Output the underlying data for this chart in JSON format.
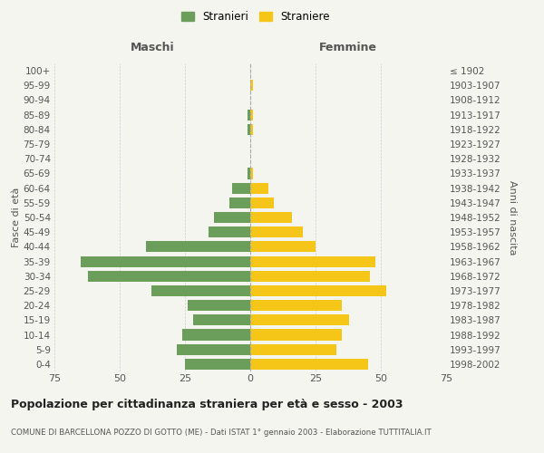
{
  "age_groups": [
    "100+",
    "95-99",
    "90-94",
    "85-89",
    "80-84",
    "75-79",
    "70-74",
    "65-69",
    "60-64",
    "55-59",
    "50-54",
    "45-49",
    "40-44",
    "35-39",
    "30-34",
    "25-29",
    "20-24",
    "15-19",
    "10-14",
    "5-9",
    "0-4"
  ],
  "birth_years": [
    "≤ 1902",
    "1903-1907",
    "1908-1912",
    "1913-1917",
    "1918-1922",
    "1923-1927",
    "1928-1932",
    "1933-1937",
    "1938-1942",
    "1943-1947",
    "1948-1952",
    "1953-1957",
    "1958-1962",
    "1963-1967",
    "1968-1972",
    "1973-1977",
    "1978-1982",
    "1983-1987",
    "1988-1992",
    "1993-1997",
    "1998-2002"
  ],
  "maschi": [
    0,
    0,
    0,
    1,
    1,
    0,
    0,
    1,
    7,
    8,
    14,
    16,
    40,
    65,
    62,
    38,
    24,
    22,
    26,
    28,
    25
  ],
  "femmine": [
    0,
    1,
    0,
    1,
    1,
    0,
    0,
    1,
    7,
    9,
    16,
    20,
    25,
    48,
    46,
    52,
    35,
    38,
    35,
    33,
    45
  ],
  "color_maschi": "#6a9e5a",
  "color_femmine": "#f5c518",
  "bg_color": "#f5f5f0",
  "grid_color": "#cccccc",
  "title": "Popolazione per cittadinanza straniera per età e sesso - 2003",
  "subtitle": "COMUNE DI BARCELLONA POZZO DI GOTTO (ME) - Dati ISTAT 1° gennaio 2003 - Elaborazione TUTTITALIA.IT",
  "xlabel_left": "Maschi",
  "xlabel_right": "Femmine",
  "ylabel_left": "Fasce di età",
  "ylabel_right": "Anni di nascita",
  "legend_maschi": "Stranieri",
  "legend_femmine": "Straniere",
  "xlim": 75
}
